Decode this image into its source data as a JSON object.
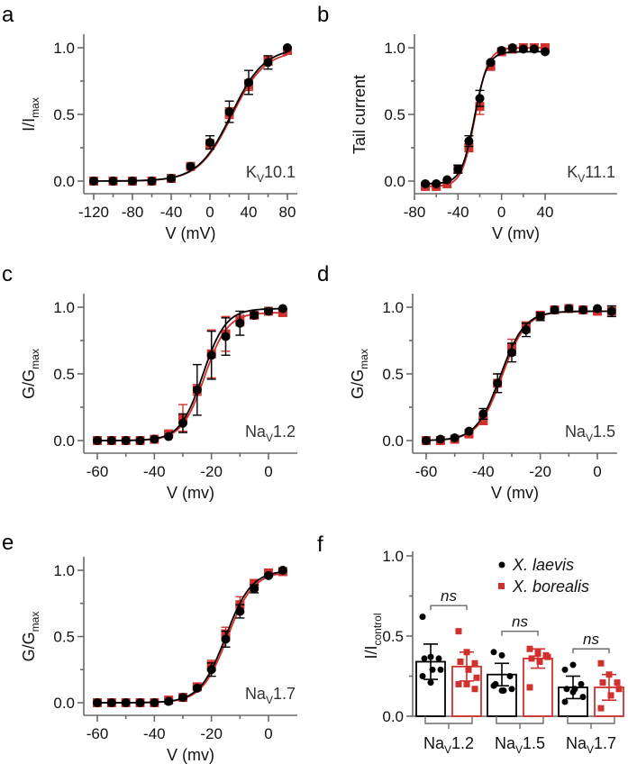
{
  "colors": {
    "laevis": "#000000",
    "borealis": "#d0312d",
    "axis": "#6b6b6b"
  },
  "chart_data": [
    {
      "panel": "a",
      "type": "line",
      "channel": "KV10.1",
      "channel_main": "K",
      "channel_sub": "V",
      "channel_rest": "10.1",
      "xlabel": "V (mV)",
      "ylabel_main": "I/I",
      "ylabel_sub": "max",
      "xlim": [
        -125,
        88
      ],
      "ylim": [
        -0.06,
        1.1
      ],
      "xticks": [
        -120,
        -80,
        -40,
        0,
        40,
        80
      ],
      "xticks_minor": [
        -100,
        -60,
        -20,
        20,
        60
      ],
      "yticks": [
        0.0,
        0.5,
        1.0
      ],
      "yticks_minor": [
        0.25,
        0.75
      ],
      "ytick_labels": [
        "0.0",
        "0.5",
        "1.0"
      ],
      "xtick_labels": [
        "-120",
        "-80",
        "-40",
        "0",
        "40",
        "80"
      ],
      "fit": {
        "v_half": 22,
        "k": 17
      },
      "series": [
        {
          "name": "X. laevis",
          "x": [
            -120,
            -100,
            -80,
            -60,
            -40,
            -20,
            0,
            20,
            40,
            60,
            80
          ],
          "y": [
            0,
            0,
            0,
            0,
            0.02,
            0.11,
            0.29,
            0.52,
            0.74,
            0.89,
            1.0
          ],
          "err": [
            0,
            0,
            0,
            0,
            0.01,
            0.01,
            0.05,
            0.08,
            0.09,
            0.05,
            0
          ]
        },
        {
          "name": "X. borealis",
          "x": [
            -120,
            -100,
            -80,
            -60,
            -40,
            -20,
            0,
            20,
            40,
            60,
            80
          ],
          "y": [
            0,
            0,
            0,
            0,
            0.02,
            0.11,
            0.28,
            0.51,
            0.72,
            0.9,
            0.98
          ],
          "err": [
            0,
            0,
            0,
            0,
            0.01,
            0.01,
            0.03,
            0.04,
            0.04,
            0.03,
            0.01
          ]
        }
      ]
    },
    {
      "panel": "b",
      "type": "line",
      "channel": "KV11.1",
      "channel_main": "K",
      "channel_sub": "V",
      "channel_rest": "11.1",
      "xlabel": "V (mv)",
      "ylabel_main": "Tail current",
      "ylabel_sub": "",
      "xlim": [
        -80,
        44
      ],
      "ylim": [
        -0.1,
        1.1
      ],
      "xticks": [
        -80,
        -40,
        0,
        40
      ],
      "xticks_minor": [
        -60,
        -20,
        20
      ],
      "yticks": [
        0.0,
        0.5,
        1.0
      ],
      "yticks_minor": [
        0.25,
        0.75
      ],
      "ytick_labels": [
        "0.0",
        "0.5",
        "1.0"
      ],
      "xtick_labels": [
        "-80",
        "-40",
        "0",
        "40"
      ],
      "fit": {
        "v_half": -25,
        "k": 6
      },
      "series": [
        {
          "name": "X. laevis",
          "x": [
            -70,
            -60,
            -50,
            -40,
            -30,
            -20,
            -10,
            0,
            10,
            20,
            30,
            40
          ],
          "y": [
            -0.02,
            -0.02,
            0.01,
            0.09,
            0.3,
            0.62,
            0.89,
            0.98,
            1.0,
            0.99,
            0.99,
            0.97
          ],
          "err": [
            0,
            0,
            0,
            0.03,
            0.04,
            0.06,
            0.01,
            0,
            0,
            0,
            0,
            0
          ]
        },
        {
          "name": "X. borealis",
          "x": [
            -70,
            -60,
            -50,
            -40,
            -30,
            -20,
            -10,
            0,
            10,
            20,
            30,
            40
          ],
          "y": [
            -0.04,
            -0.04,
            -0.02,
            0.09,
            0.25,
            0.56,
            0.86,
            0.97,
            0.99,
            1.0,
            1.0,
            1.0
          ],
          "err": [
            0,
            0,
            0,
            0.03,
            0.03,
            0.06,
            0.02,
            0.01,
            0,
            0,
            0,
            0
          ]
        }
      ]
    },
    {
      "panel": "c",
      "type": "line",
      "channel": "NaV1.2",
      "channel_main": "Na",
      "channel_sub": "V",
      "channel_rest": "1.2",
      "xlabel": "V (mv)",
      "ylabel_main": "G/G",
      "ylabel_sub": "max",
      "xlim": [
        -64,
        10
      ],
      "ylim": [
        -0.1,
        1.1
      ],
      "xticks": [
        -60,
        -40,
        -20,
        0
      ],
      "xticks_minor": [
        -50,
        -30,
        -10
      ],
      "yticks": [
        0.0,
        0.5,
        1.0
      ],
      "yticks_minor": [
        0.25,
        0.75
      ],
      "ytick_labels": [
        "0.0",
        "0.5",
        "1.0"
      ],
      "xtick_labels": [
        "-60",
        "-40",
        "-20",
        "0"
      ],
      "fit": {
        "v_half": -23,
        "k": 4
      },
      "series": [
        {
          "name": "X. laevis",
          "x": [
            -60,
            -55,
            -50,
            -45,
            -40,
            -35,
            -30,
            -25,
            -20,
            -15,
            -10,
            -5,
            0,
            5
          ],
          "y": [
            0,
            0,
            0,
            0,
            0.01,
            0.03,
            0.13,
            0.38,
            0.64,
            0.78,
            0.88,
            0.94,
            0.97,
            0.99
          ],
          "err": [
            0,
            0,
            0,
            0,
            0,
            0,
            0.07,
            0.19,
            0.18,
            0.14,
            0.09,
            0.02,
            0,
            0
          ]
        },
        {
          "name": "X. borealis",
          "x": [
            -60,
            -55,
            -50,
            -45,
            -40,
            -35,
            -30,
            -25,
            -20,
            -15,
            -10,
            -5,
            0,
            5
          ],
          "y": [
            0,
            0,
            0,
            0,
            0.01,
            0.05,
            0.17,
            0.38,
            0.65,
            0.8,
            0.9,
            0.94,
            0.97,
            0.96
          ],
          "err": [
            0,
            0,
            0,
            0,
            0,
            0.01,
            0.1,
            0.04,
            0.18,
            0.13,
            0.04,
            0.02,
            0,
            0.02
          ]
        }
      ]
    },
    {
      "panel": "d",
      "type": "line",
      "channel": "NaV1.5",
      "channel_main": "Na",
      "channel_sub": "V",
      "channel_rest": "1.5",
      "xlabel": "V (mv)",
      "ylabel_main": "G/G",
      "ylabel_sub": "max",
      "xlim": [
        -64,
        9
      ],
      "ylim": [
        -0.1,
        1.1
      ],
      "xticks": [
        -60,
        -40,
        -20,
        0
      ],
      "xticks_minor": [
        -50,
        -30,
        -10
      ],
      "yticks": [
        0.0,
        0.5,
        1.0
      ],
      "yticks_minor": [
        0.25,
        0.75
      ],
      "ytick_labels": [
        "0.0",
        "0.5",
        "1.0"
      ],
      "xtick_labels": [
        "-60",
        "-40",
        "-20",
        "0"
      ],
      "fit": {
        "v_half": -34,
        "k": 4.2
      },
      "series": [
        {
          "name": "X. laevis",
          "x": [
            -60,
            -55,
            -50,
            -45,
            -40,
            -35,
            -30,
            -25,
            -20,
            -15,
            -10,
            -5,
            0,
            5
          ],
          "y": [
            0,
            0.01,
            0.02,
            0.07,
            0.2,
            0.43,
            0.66,
            0.83,
            0.93,
            0.98,
            0.99,
            0.98,
            0.99,
            0.97
          ],
          "err": [
            0,
            0,
            0,
            0,
            0.04,
            0.07,
            0.07,
            0.05,
            0.03,
            0,
            0,
            0,
            0,
            0.04
          ]
        },
        {
          "name": "X. borealis",
          "x": [
            -60,
            -55,
            -50,
            -45,
            -40,
            -35,
            -30,
            -25,
            -20,
            -15,
            -10,
            -5,
            0,
            5
          ],
          "y": [
            0,
            0,
            0.01,
            0.05,
            0.15,
            0.43,
            0.7,
            0.85,
            0.94,
            0.98,
            0.99,
            0.98,
            0.97,
            0.97
          ],
          "err": [
            0,
            0,
            0,
            0.01,
            0.03,
            0.07,
            0.06,
            0.04,
            0.02,
            0.01,
            0,
            0,
            0.01,
            0.02
          ]
        }
      ]
    },
    {
      "panel": "e",
      "type": "line",
      "channel": "NaV1.7",
      "channel_main": "Na",
      "channel_sub": "V",
      "channel_rest": "1.7",
      "xlabel": "V (mv)",
      "ylabel_main": "G/G",
      "ylabel_sub": "max",
      "xlim": [
        -64,
        10
      ],
      "ylim": [
        -0.1,
        1.1
      ],
      "xticks": [
        -60,
        -40,
        -20,
        0
      ],
      "xticks_minor": [
        -50,
        -30,
        -10
      ],
      "yticks": [
        0.0,
        0.5,
        1.0
      ],
      "yticks_minor": [
        0.25,
        0.75
      ],
      "ytick_labels": [
        "0.0",
        "0.5",
        "1.0"
      ],
      "xtick_labels": [
        "-60",
        "-40",
        "-20",
        "0"
      ],
      "fit": {
        "v_half": -15,
        "k": 4.5
      },
      "series": [
        {
          "name": "X. laevis",
          "x": [
            -60,
            -55,
            -50,
            -45,
            -40,
            -35,
            -30,
            -25,
            -20,
            -15,
            -10,
            -5,
            0,
            5
          ],
          "y": [
            0,
            0,
            0,
            0,
            0,
            0.01,
            0.04,
            0.11,
            0.25,
            0.48,
            0.69,
            0.86,
            0.96,
            1.0
          ],
          "err": [
            0,
            0,
            0,
            0,
            0,
            0,
            0,
            0.01,
            0.05,
            0.06,
            0.05,
            0.03,
            0,
            0
          ]
        },
        {
          "name": "X. borealis",
          "x": [
            -60,
            -55,
            -50,
            -45,
            -40,
            -35,
            -30,
            -25,
            -20,
            -15,
            -10,
            -5,
            0,
            5
          ],
          "y": [
            0,
            0,
            0,
            0,
            0,
            0.02,
            0.04,
            0.12,
            0.28,
            0.52,
            0.74,
            0.9,
            0.98,
            0.99
          ],
          "err": [
            0,
            0,
            0,
            0,
            0,
            0,
            0,
            0.01,
            0.04,
            0.05,
            0.06,
            0.03,
            0.01,
            0.01
          ]
        }
      ]
    },
    {
      "panel": "f",
      "type": "bar",
      "ylabel_main": "I/I",
      "ylabel_sub": "control",
      "ylim": [
        0,
        1.0
      ],
      "yticks": [
        0.0,
        0.5,
        1.0
      ],
      "yticks_minor": [
        0.25,
        0.75
      ],
      "ytick_labels": [
        "0.0",
        "0.5",
        "1.0"
      ],
      "categories": [
        {
          "main": "Na",
          "sub": "V",
          "rest": "1.2"
        },
        {
          "main": "Na",
          "sub": "V",
          "rest": "1.5"
        },
        {
          "main": "Na",
          "sub": "V",
          "rest": "1.7"
        }
      ],
      "significance": [
        "ns",
        "ns",
        "ns"
      ],
      "legend": [
        {
          "label": "X. laevis",
          "marker": "circle"
        },
        {
          "label": "X. borealis",
          "marker": "square"
        }
      ],
      "legend_position": "top-right",
      "series": [
        {
          "name": "X. laevis",
          "values": [
            0.34,
            0.26,
            0.18
          ],
          "err": [
            0.11,
            0.07,
            0.07
          ],
          "points": [
            [
              0.62,
              0.37,
              0.36,
              0.36,
              0.29,
              0.29,
              0.25,
              0.21
            ],
            [
              0.4,
              0.38,
              0.25,
              0.2,
              0.16,
              0.17,
              0.19,
              0.16
            ],
            [
              0.29,
              0.32,
              0.2,
              0.17,
              0.17,
              0.12,
              0.09,
              0.15
            ]
          ]
        },
        {
          "name": "X. borealis",
          "values": [
            0.31,
            0.36,
            0.18
          ],
          "err": [
            0.09,
            0.06,
            0.08
          ],
          "points": [
            [
              0.53,
              0.4,
              0.33,
              0.34,
              0.29,
              0.24,
              0.2,
              0.2,
              0.17
            ],
            [
              0.42,
              0.39,
              0.38,
              0.36,
              0.34,
              0.37,
              0.18,
              0.4
            ],
            [
              0.33,
              0.26,
              0.21,
              0.21,
              0.13,
              0.17,
              0.05
            ]
          ]
        }
      ]
    }
  ]
}
